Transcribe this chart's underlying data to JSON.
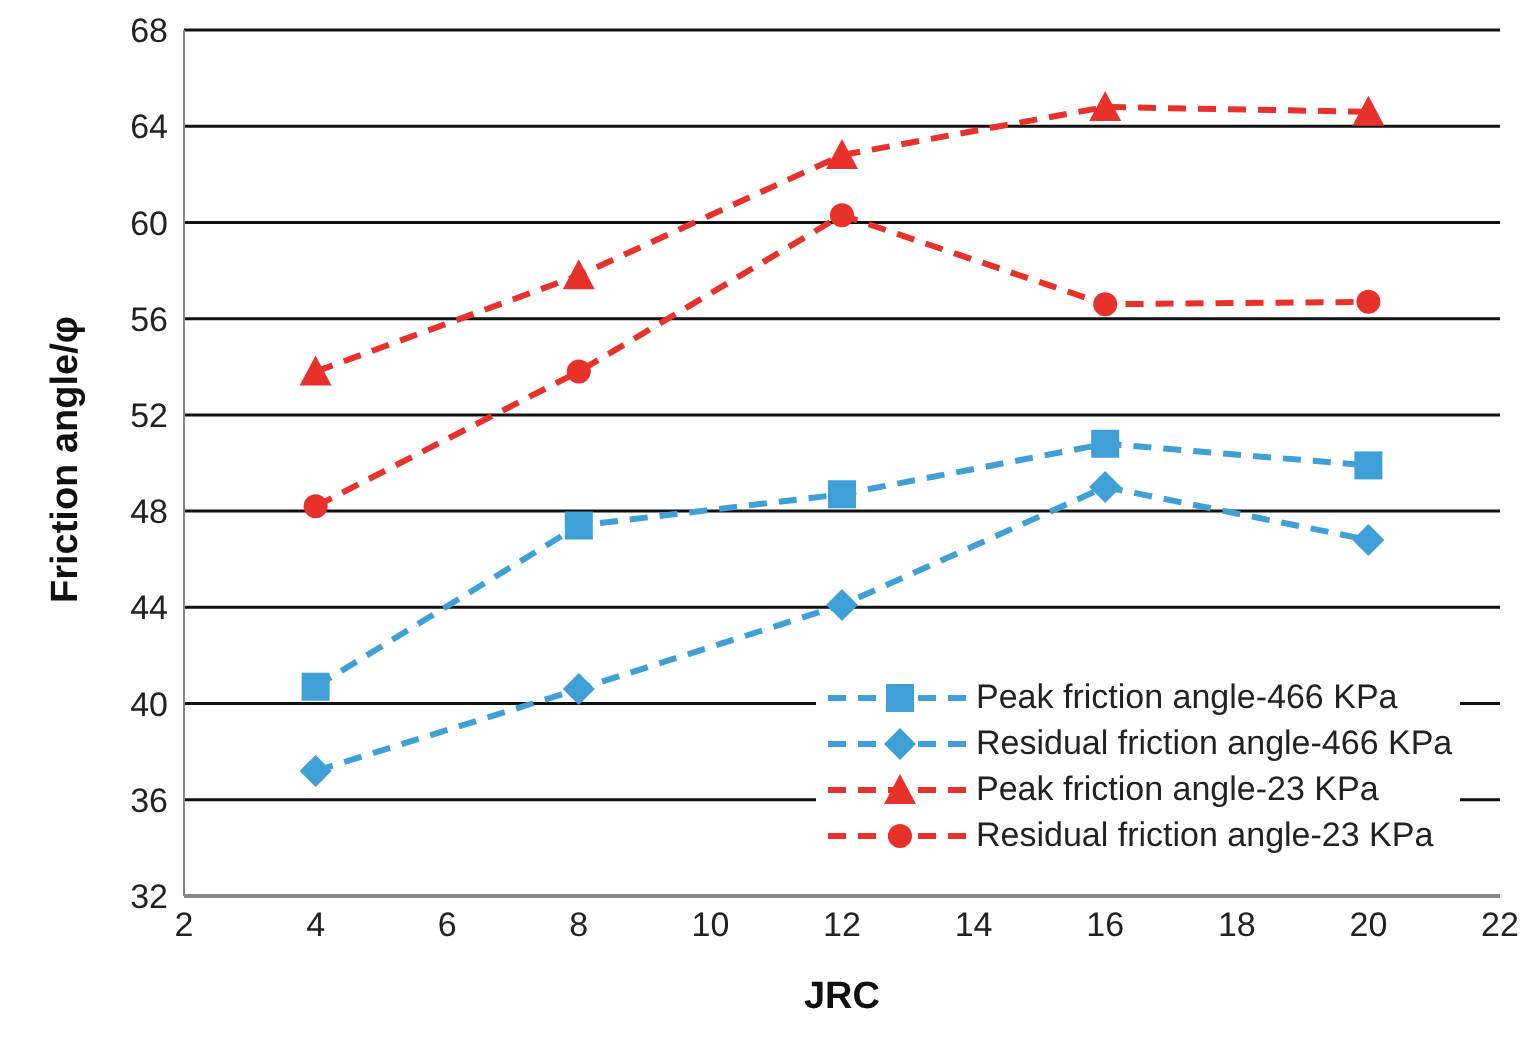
{
  "chart_data": {
    "type": "line",
    "xlabel": "JRC",
    "ylabel": "Friction angle/φ",
    "x": [
      4,
      8,
      12,
      16,
      20
    ],
    "series": [
      {
        "name": "Peak friction angle-466 KPa",
        "color": "#3fa0d8",
        "marker": "square",
        "values": [
          40.7,
          47.4,
          48.7,
          50.8,
          49.9
        ]
      },
      {
        "name": "Residual friction angle-466 KPa",
        "color": "#3fa0d8",
        "marker": "diamond",
        "values": [
          37.2,
          40.6,
          44.1,
          49.0,
          46.8
        ]
      },
      {
        "name": "Peak friction angle-23 KPa",
        "color": "#e8312a",
        "marker": "triangle",
        "values": [
          53.8,
          57.8,
          62.8,
          64.8,
          64.6
        ]
      },
      {
        "name": "Residual friction angle-23 KPa",
        "color": "#e8312a",
        "marker": "circle",
        "values": [
          48.2,
          53.8,
          60.3,
          56.6,
          56.7
        ]
      }
    ],
    "xlim": [
      2,
      22
    ],
    "xticks": [
      2,
      4,
      6,
      8,
      10,
      12,
      14,
      16,
      18,
      20,
      22
    ],
    "ylim": [
      32,
      68
    ],
    "yticks": [
      32,
      36,
      40,
      44,
      48,
      52,
      56,
      60,
      64,
      68
    ],
    "grid": "y",
    "legend": "bottom right",
    "line_style": "dashed"
  }
}
